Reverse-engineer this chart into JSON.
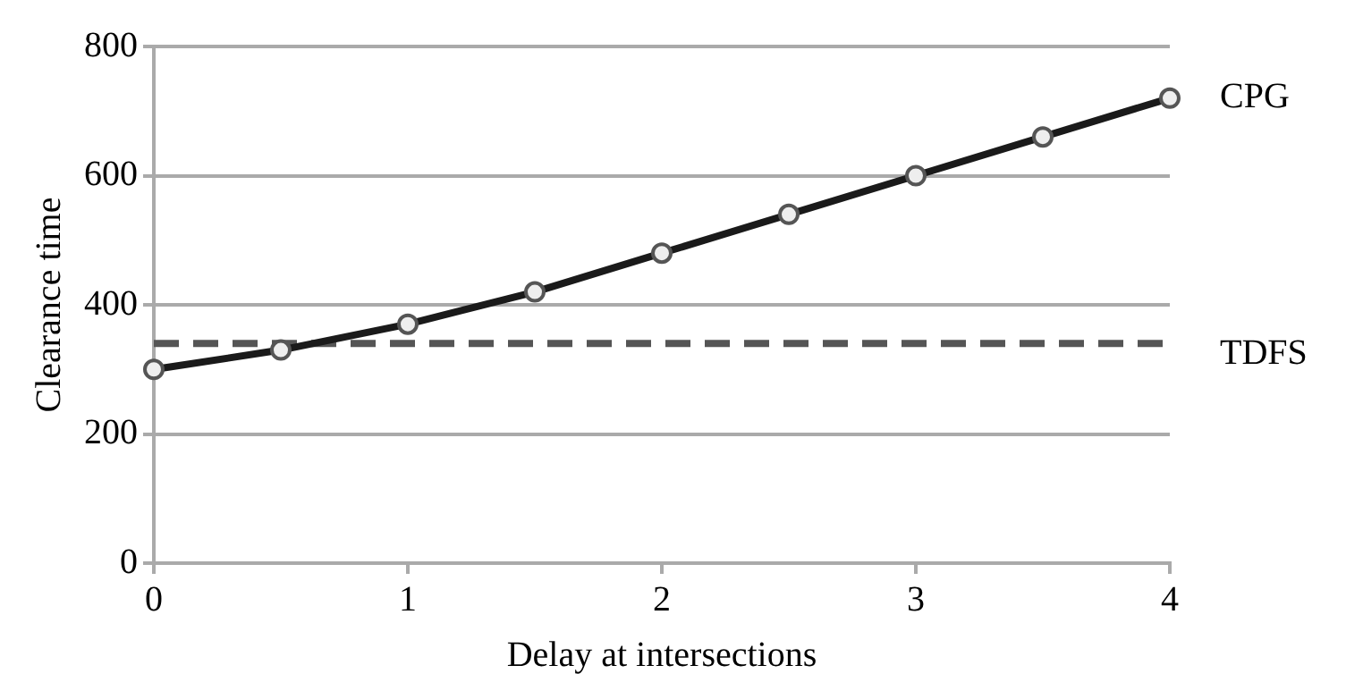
{
  "chart_data": {
    "type": "line",
    "xlabel": "Delay at intersections",
    "ylabel": "Clearance time",
    "xlim": [
      0,
      4
    ],
    "xticks": [
      0,
      1,
      2,
      3,
      4
    ],
    "ylim": [
      0,
      800
    ],
    "yticks": [
      0,
      200,
      400,
      600,
      800
    ],
    "grid": "y",
    "legend": false,
    "series": [
      {
        "name": "CPG",
        "color": "#1a1a1a",
        "x": [
          0,
          0.5,
          1,
          1.5,
          2,
          2.5,
          3,
          3.5,
          4
        ],
        "values": [
          300,
          330,
          370,
          420,
          480,
          540,
          600,
          660,
          720
        ],
        "marker": "circle",
        "line_style": "solid"
      },
      {
        "name": "TDFS",
        "color": "#555555",
        "x": [
          0,
          4
        ],
        "values": [
          340,
          340
        ],
        "marker": "none",
        "line_style": "dashed"
      }
    ]
  }
}
